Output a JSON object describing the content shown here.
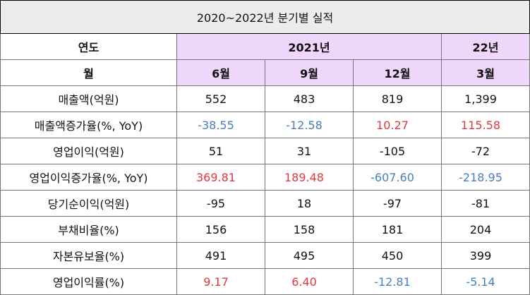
{
  "title": "2020~2022년 분기별 실적",
  "header": {
    "year_label": "연도",
    "year_2021": "2021년",
    "year_22": "22년",
    "month_label": "월",
    "months": [
      "6월",
      "9월",
      "12월",
      "3월"
    ]
  },
  "rows": [
    {
      "label": "매출액(억원)",
      "values": [
        "552",
        "483",
        "819",
        "1,399"
      ],
      "colors": [
        "black",
        "black",
        "black",
        "black"
      ]
    },
    {
      "label": "매출액증가율(%, YoY)",
      "values": [
        "-38.55",
        "-12.58",
        "10.27",
        "115.58"
      ],
      "colors": [
        "blue",
        "blue",
        "red",
        "red"
      ]
    },
    {
      "label": "영업이익(억원)",
      "values": [
        "51",
        "31",
        "-105",
        "-72"
      ],
      "colors": [
        "black",
        "black",
        "black",
        "black"
      ]
    },
    {
      "label": "영업이익증가율(%, YoY)",
      "values": [
        "369.81",
        "189.48",
        "-607.60",
        "-218.95"
      ],
      "colors": [
        "red",
        "red",
        "blue",
        "blue"
      ]
    },
    {
      "label": "당기순이익(억원)",
      "values": [
        "-95",
        "18",
        "-97",
        "-81"
      ],
      "colors": [
        "black",
        "black",
        "black",
        "black"
      ]
    },
    {
      "label": "부채비율(%)",
      "values": [
        "156",
        "158",
        "181",
        "204"
      ],
      "colors": [
        "black",
        "black",
        "black",
        "black"
      ]
    },
    {
      "label": "자본유보율(%)",
      "values": [
        "491",
        "495",
        "450",
        "399"
      ],
      "colors": [
        "black",
        "black",
        "black",
        "black"
      ]
    },
    {
      "label": "영업이익률(%)",
      "values": [
        "9.17",
        "6.40",
        "-12.81",
        "-5.14"
      ],
      "colors": [
        "red",
        "red",
        "blue",
        "blue"
      ]
    }
  ],
  "palette": {
    "header_purple": "#efd6fb",
    "title_gray": "#ececec",
    "negative_blue": "#4a7ebb",
    "positive_red": "#e0393e"
  }
}
